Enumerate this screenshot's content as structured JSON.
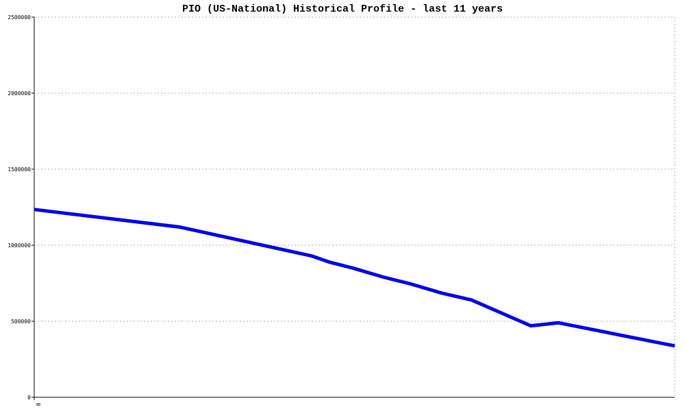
{
  "chart_data": {
    "type": "line",
    "title": "PIO (US-National) Historical Profile - last 11 years",
    "x": [
      0,
      2.49,
      4.76,
      5.06,
      5.47,
      6.0,
      6.47,
      7.0,
      7.51,
      8.53,
      9.0,
      11
    ],
    "series": [
      {
        "color": "#0000ee",
        "values": [
          1235000,
          1120000,
          930000,
          890000,
          850000,
          790000,
          745000,
          685000,
          640000,
          470000,
          490000,
          338000
        ]
      }
    ],
    "xlim": [
      0,
      11
    ],
    "xticks": [
      0
    ],
    "ylim": [
      0,
      2500000
    ],
    "yticks": [
      0,
      500000,
      1000000,
      1500000,
      2000000,
      2500000
    ],
    "grid": true
  }
}
